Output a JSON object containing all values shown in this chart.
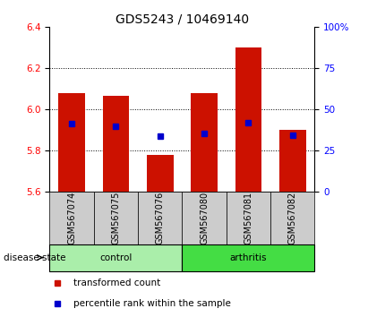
{
  "title": "GDS5243 / 10469140",
  "samples": [
    "GSM567074",
    "GSM567075",
    "GSM567076",
    "GSM567080",
    "GSM567081",
    "GSM567082"
  ],
  "bar_tops": [
    6.08,
    6.065,
    5.78,
    6.08,
    6.3,
    5.9
  ],
  "blue_markers": [
    5.93,
    5.92,
    5.87,
    5.885,
    5.935,
    5.875
  ],
  "baseline": 5.6,
  "ylim": [
    5.6,
    6.4
  ],
  "y2lim": [
    0,
    100
  ],
  "yticks_left": [
    5.6,
    5.8,
    6.0,
    6.2,
    6.4
  ],
  "yticks_right": [
    0,
    25,
    50,
    75,
    100
  ],
  "ytick_labels_right": [
    "0",
    "25",
    "50",
    "75",
    "100%"
  ],
  "grid_lines": [
    5.8,
    6.0,
    6.2
  ],
  "bar_color": "#cc1100",
  "marker_color": "#0000cc",
  "groups": [
    {
      "label": "control",
      "indices": [
        0,
        1,
        2
      ],
      "color": "#aaeeaa"
    },
    {
      "label": "arthritis",
      "indices": [
        3,
        4,
        5
      ],
      "color": "#44dd44"
    }
  ],
  "disease_state_label": "disease state",
  "legend_items": [
    {
      "label": "transformed count",
      "color": "#cc1100"
    },
    {
      "label": "percentile rank within the sample",
      "color": "#0000cc"
    }
  ],
  "xlabel_box_color": "#cccccc",
  "title_fontsize": 10,
  "tick_fontsize": 7.5,
  "label_fontsize": 7.5
}
